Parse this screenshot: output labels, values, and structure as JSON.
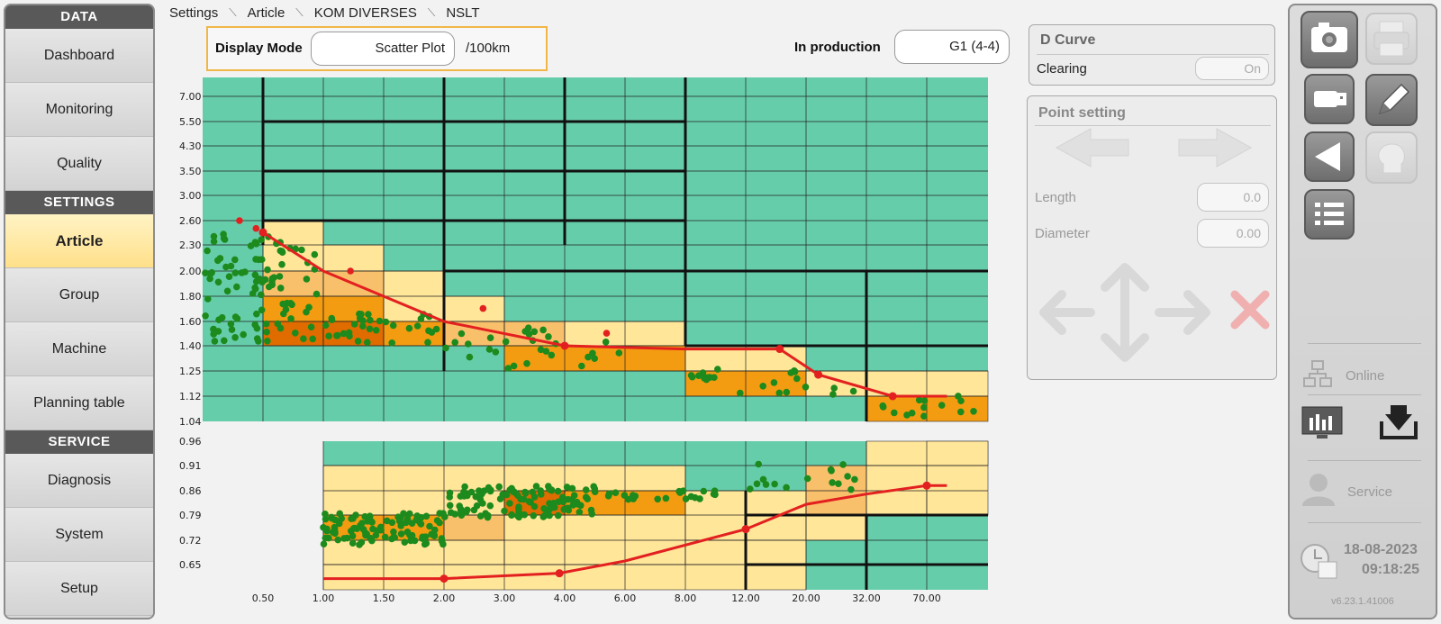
{
  "nav": {
    "sections": [
      {
        "title": "DATA",
        "items": [
          "Dashboard",
          "Monitoring",
          "Quality"
        ]
      },
      {
        "title": "SETTINGS",
        "items": [
          "Article",
          "Group",
          "Machine",
          "Planning table"
        ]
      },
      {
        "title": "SERVICE",
        "items": [
          "Diagnosis",
          "System",
          "Setup"
        ]
      }
    ],
    "active": "Article"
  },
  "breadcrumb": [
    "Settings",
    "Article",
    "KOM DIVERSES",
    "NSLT"
  ],
  "header": {
    "display_mode_label": "Display Mode",
    "display_mode_value": "Scatter Plot",
    "unit": "/100km",
    "production_label": "In production",
    "production_value": "G1 (4-4)"
  },
  "d_curve": {
    "title": "D Curve",
    "clearing_label": "Clearing",
    "clearing_value": "On"
  },
  "point_setting": {
    "title": "Point setting",
    "length_label": "Length",
    "length_value": "0.0",
    "diameter_label": "Diameter",
    "diameter_value": "0.00"
  },
  "rightbar": {
    "online_label": "Online",
    "service_label": "Service",
    "date": "18-08-2023",
    "time": "09:18:25",
    "version": "v6.23.1.41006",
    "icons": [
      "camera-icon",
      "printer-icon",
      "usb-icon",
      "pencil-icon",
      "back-triangle-icon",
      "head-icon",
      "list-icon",
      "network-icon",
      "monitor-chart-icon",
      "download-icon",
      "user-icon",
      "clock-calendar-icon"
    ]
  },
  "colors": {
    "grid_green": "#66cdaa",
    "zone_light": "#ffe699",
    "zone_mid": "#f9c06b",
    "zone_orange": "#f39c12",
    "zone_dark": "#e06c00",
    "curve": "#e32020",
    "points": "#1d8a1d",
    "active_nav": "#ffe08a"
  },
  "chart_data": {
    "type": "scatter",
    "x_tick_labels": [
      "0.50",
      "1.00",
      "1.50",
      "2.00",
      "3.00",
      "4.00",
      "6.00",
      "8.00",
      "12.00",
      "20.00",
      "32.00",
      "70.00"
    ],
    "y_upper_tick_labels": [
      "7.00",
      "5.50",
      "4.30",
      "3.50",
      "3.00",
      "2.60",
      "2.30",
      "2.00",
      "1.80",
      "1.60",
      "1.40",
      "1.25",
      "1.12",
      "1.04"
    ],
    "y_lower_tick_labels": [
      "0.96",
      "0.91",
      "0.86",
      "0.79",
      "0.72",
      "0.65"
    ],
    "upper_curve": [
      [
        0.5,
        2.45
      ],
      [
        1.0,
        2.0
      ],
      [
        2.0,
        1.6
      ],
      [
        4.0,
        1.4
      ],
      [
        8.0,
        1.38
      ],
      [
        16.0,
        1.38
      ],
      [
        22.0,
        1.23
      ],
      [
        45.0,
        1.12
      ],
      [
        90.0,
        1.12
      ]
    ],
    "upper_curve_points": [
      [
        0.5,
        2.45
      ],
      [
        4.0,
        1.4
      ],
      [
        16.0,
        1.38
      ],
      [
        22.0,
        1.23
      ],
      [
        45.0,
        1.12
      ]
    ],
    "upper_outliers": [
      [
        0.35,
        2.6
      ],
      [
        0.45,
        2.5
      ],
      [
        1.2,
        2.0
      ],
      [
        2.6,
        1.7
      ],
      [
        5.3,
        1.5
      ]
    ],
    "lower_curve": [
      [
        1.0,
        0.61
      ],
      [
        2.0,
        0.61
      ],
      [
        3.9,
        0.625
      ],
      [
        6.0,
        0.66
      ],
      [
        12.0,
        0.75
      ],
      [
        20.0,
        0.82
      ],
      [
        32.0,
        0.85
      ],
      [
        70.0,
        0.87
      ],
      [
        90.0,
        0.87
      ]
    ],
    "lower_curve_points": [
      [
        2.0,
        0.61
      ],
      [
        3.9,
        0.625
      ],
      [
        12.0,
        0.75
      ],
      [
        70.0,
        0.87
      ]
    ],
    "point_count_upper": 240,
    "point_count_lower": 260
  }
}
